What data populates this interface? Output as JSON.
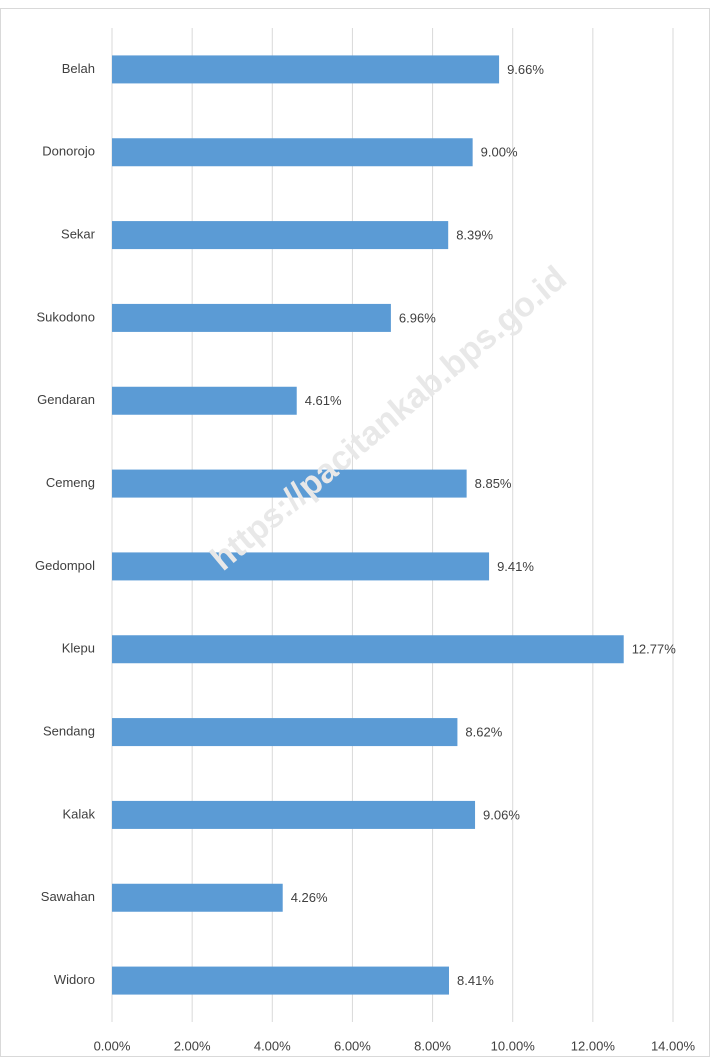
{
  "chart_data": {
    "type": "bar",
    "orientation": "horizontal",
    "watermark": "https://pacitankab.bps.go.id",
    "categories": [
      "Belah",
      "Donorojo",
      "Sekar",
      "Sukodono",
      "Gendaran",
      "Cemeng",
      "Gedompol",
      "Klepu",
      "Sendang",
      "Kalak",
      "Sawahan",
      "Widoro"
    ],
    "values": [
      9.66,
      9.0,
      8.39,
      6.96,
      4.61,
      8.85,
      9.41,
      12.77,
      8.62,
      9.06,
      4.26,
      8.41
    ],
    "value_labels": [
      "9.66%",
      "9.00%",
      "8.39%",
      "6.96%",
      "4.61%",
      "8.85%",
      "9.41%",
      "12.77%",
      "8.62%",
      "9.06%",
      "4.26%",
      "8.41%"
    ],
    "color": "#5b9bd5",
    "xlim": [
      0,
      14
    ],
    "xticks": [
      {
        "value": 0,
        "label": "0.00%"
      },
      {
        "value": 2,
        "label": "2.00%"
      },
      {
        "value": 4,
        "label": "4.00%"
      },
      {
        "value": 6,
        "label": "6.00%"
      },
      {
        "value": 8,
        "label": "8.00%"
      },
      {
        "value": 10,
        "label": "10.00%"
      },
      {
        "value": 12,
        "label": "12.00%"
      },
      {
        "value": 14,
        "label": "14.00%"
      }
    ],
    "grid": true
  }
}
